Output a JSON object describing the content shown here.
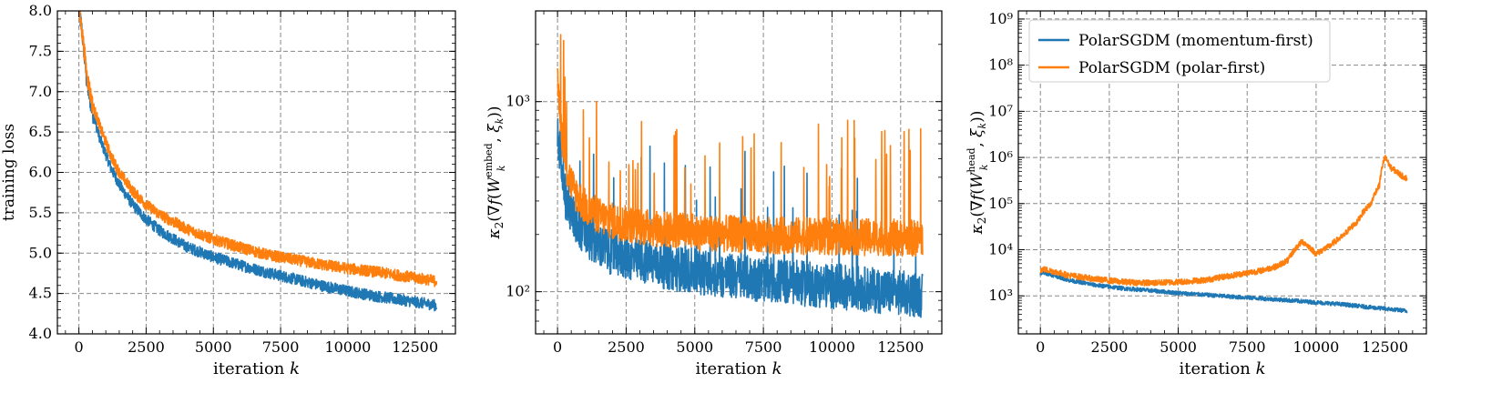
{
  "chart_data": [
    {
      "type": "line",
      "xlabel": "iteration k",
      "ylabel": "training loss",
      "yscale": "linear",
      "xlim": [
        -800,
        14000
      ],
      "ylim": [
        4.0,
        8.0
      ],
      "xticks": [
        0,
        2500,
        5000,
        7500,
        10000,
        12500
      ],
      "yticks": [
        4.0,
        4.5,
        5.0,
        5.5,
        6.0,
        6.5,
        7.0,
        7.5,
        8.0
      ],
      "ytick_labels": [
        "4.0",
        "4.5",
        "5.0",
        "5.5",
        "6.0",
        "6.5",
        "7.0",
        "7.5",
        "8.0"
      ],
      "grid": true,
      "series": [
        {
          "name": "PolarSGDM (momentum-first)",
          "color": "#1f77b4",
          "x": [
            0,
            100,
            300,
            500,
            800,
            1200,
            1500,
            2000,
            2500,
            3000,
            4000,
            5000,
            6000,
            7000,
            8000,
            9000,
            10000,
            11000,
            12000,
            13000,
            13300
          ],
          "y": [
            8.0,
            7.8,
            7.1,
            6.75,
            6.4,
            6.05,
            5.85,
            5.6,
            5.42,
            5.28,
            5.08,
            4.95,
            4.85,
            4.76,
            4.68,
            4.6,
            4.53,
            4.47,
            4.42,
            4.37,
            4.35
          ]
        },
        {
          "name": "PolarSGDM (polar-first)",
          "color": "#ff7f0e",
          "x": [
            0,
            100,
            300,
            500,
            800,
            1200,
            1500,
            2000,
            2500,
            3000,
            4000,
            5000,
            6000,
            7000,
            8000,
            9000,
            10000,
            11000,
            12000,
            13000,
            13300
          ],
          "y": [
            8.0,
            7.8,
            7.2,
            6.85,
            6.55,
            6.2,
            6.0,
            5.77,
            5.6,
            5.48,
            5.3,
            5.17,
            5.07,
            4.98,
            4.92,
            4.86,
            4.81,
            4.77,
            4.72,
            4.67,
            4.65
          ]
        }
      ]
    },
    {
      "type": "line",
      "xlabel": "iteration k",
      "ylabel": "κ2(∇f(W_k^embed, ξk))",
      "yscale": "log",
      "xlim": [
        -800,
        14000
      ],
      "ylim": [
        60,
        3000
      ],
      "xticks": [
        0,
        2500,
        5000,
        7500,
        10000,
        12500
      ],
      "yticks": [
        100,
        1000
      ],
      "ytick_labels": [
        "10²",
        "10³"
      ],
      "grid": true,
      "series": [
        {
          "name": "PolarSGDM (momentum-first)",
          "color": "#1f77b4",
          "x": [
            0,
            150,
            300,
            600,
            1000,
            1500,
            2000,
            3000,
            4000,
            5000,
            6000,
            7000,
            8000,
            9000,
            10000,
            11000,
            12000,
            13000,
            13300
          ],
          "y": [
            650,
            500,
            300,
            240,
            200,
            175,
            160,
            145,
            135,
            128,
            122,
            118,
            114,
            110,
            107,
            104,
            100,
            97,
            96
          ]
        },
        {
          "name": "PolarSGDM (polar-first)",
          "color": "#ff7f0e",
          "x": [
            0,
            150,
            300,
            600,
            1000,
            1500,
            2000,
            3000,
            4000,
            5000,
            6000,
            7000,
            8000,
            9000,
            10000,
            11000,
            12000,
            13000,
            13300
          ],
          "y": [
            1200,
            700,
            450,
            340,
            280,
            250,
            235,
            220,
            212,
            206,
            202,
            200,
            198,
            196,
            195,
            194,
            193,
            191,
            190
          ]
        }
      ]
    },
    {
      "type": "line",
      "xlabel": "iteration k",
      "ylabel": "κ2(∇f(W_k^head, ξk))",
      "yscale": "log",
      "xlim": [
        -800,
        14000
      ],
      "ylim": [
        150,
        1500000000
      ],
      "xticks": [
        0,
        2500,
        5000,
        7500,
        10000,
        12500
      ],
      "yticks": [
        1000,
        10000,
        100000,
        1000000,
        10000000,
        100000000,
        1000000000
      ],
      "ytick_labels": [
        "10³",
        "10⁴",
        "10⁵",
        "10⁶",
        "10⁷",
        "10⁸",
        "10⁹"
      ],
      "grid": true,
      "legend": {
        "position": "top-left",
        "entries": [
          "PolarSGDM (momentum-first)",
          "PolarSGDM (polar-first)"
        ]
      },
      "series": [
        {
          "name": "PolarSGDM (momentum-first)",
          "color": "#1f77b4",
          "x": [
            0,
            100,
            1000,
            2000,
            3000,
            4000,
            5000,
            6000,
            7000,
            8000,
            9000,
            10000,
            11000,
            12000,
            13300
          ],
          "y": [
            3000,
            3200,
            2200,
            1700,
            1450,
            1300,
            1150,
            1050,
            950,
            880,
            800,
            720,
            650,
            560,
            470
          ]
        },
        {
          "name": "PolarSGDM (polar-first)",
          "color": "#ff7f0e",
          "x": [
            0,
            100,
            1000,
            2000,
            3000,
            4000,
            5000,
            6000,
            7000,
            8000,
            8600,
            9000,
            9500,
            10000,
            10500,
            11000,
            11500,
            12000,
            12300,
            12500,
            12700,
            12900,
            13100,
            13300
          ],
          "y": [
            3600,
            3800,
            2800,
            2300,
            2000,
            1900,
            2000,
            2200,
            2800,
            3500,
            4400,
            6000,
            15000,
            8000,
            12000,
            20000,
            40000,
            100000,
            250000,
            1000000,
            600000,
            500000,
            400000,
            350000
          ]
        }
      ]
    }
  ]
}
